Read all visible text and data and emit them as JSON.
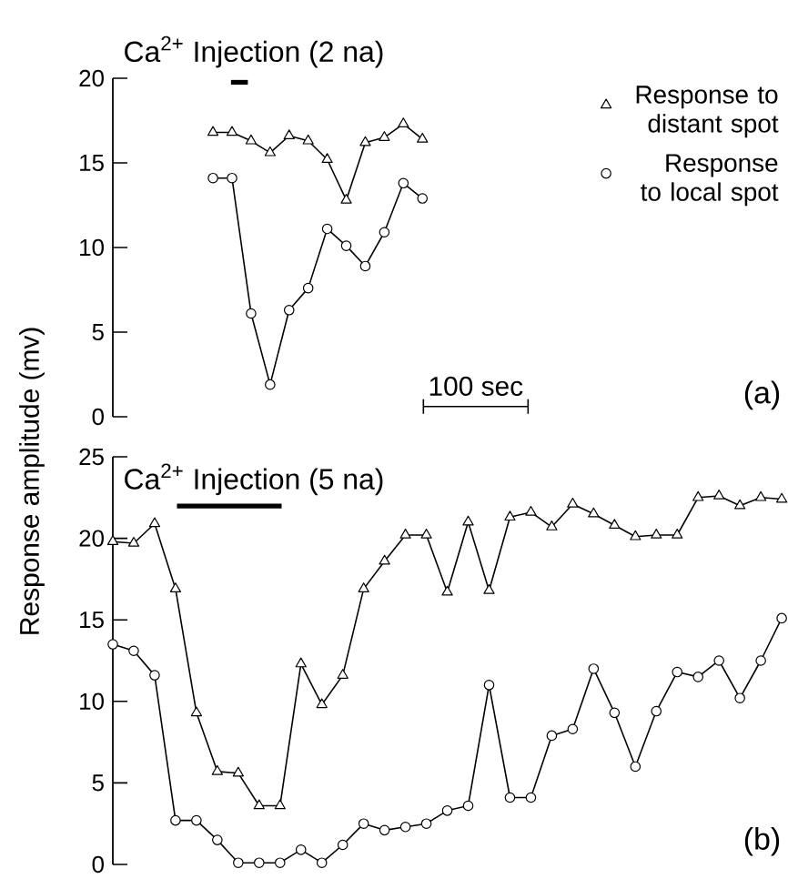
{
  "chart_data": [
    {
      "type": "line",
      "categories": [
        null,
        null,
        null,
        null,
        null,
        null,
        null,
        null,
        null,
        null,
        null,
        null
      ],
      "ylim": [
        0,
        20
      ],
      "yticks": [
        0,
        5,
        10,
        15,
        20
      ],
      "tick_labels": "y",
      "legend": "top right",
      "line_style": "solid",
      "series": [
        {
          "name": "Response to distant spot",
          "color": "#000000",
          "marker": "triangle",
          "values": [
            16.8,
            16.8,
            16.3,
            15.6,
            16.6,
            16.3,
            15.2,
            12.8,
            16.2,
            16.5,
            17.3,
            16.4
          ]
        },
        {
          "name": "Response to local spot",
          "color": "#000000",
          "marker": "circle",
          "values": [
            14.1,
            14.1,
            6.1,
            1.9,
            6.3,
            7.6,
            11.1,
            10.1,
            8.9,
            10.9,
            13.8,
            12.9
          ]
        }
      ],
      "annotations": [
        "Ca$^{2+}$ Injection (2 na)",
        "100 sec",
        "(a)"
      ]
    },
    {
      "type": "line",
      "categories": [
        null,
        null,
        null,
        null,
        null,
        null,
        null,
        null,
        null,
        null,
        null,
        null,
        null,
        null,
        null,
        null,
        null,
        null,
        null,
        null,
        null,
        null,
        null,
        null,
        null,
        null,
        null,
        null,
        null,
        null,
        null,
        null,
        null
      ],
      "ylim": [
        0,
        25
      ],
      "yticks": [
        0,
        5,
        10,
        15,
        20,
        25
      ],
      "tick_labels": "y",
      "ylabel": "Response amplitude (mv)",
      "line_style": "solid",
      "series": [
        {
          "color": "#000000",
          "marker": "triangle",
          "values": [
            19.8,
            19.7,
            20.9,
            16.9,
            9.3,
            5.7,
            5.6,
            3.6,
            3.6,
            12.3,
            9.8,
            11.6,
            16.9,
            18.6,
            20.2,
            20.2,
            16.7,
            21.0,
            16.8,
            21.3,
            21.6,
            20.7,
            22.1,
            21.5,
            20.8,
            20.1,
            20.2,
            20.2,
            22.5,
            22.6,
            22.0,
            22.5,
            22.4
          ]
        },
        {
          "color": "#000000",
          "marker": "circle",
          "values": [
            13.5,
            13.1,
            11.6,
            2.7,
            2.7,
            1.5,
            0.1,
            0.1,
            0.1,
            0.9,
            0.1,
            1.2,
            2.5,
            2.1,
            2.3,
            2.5,
            3.3,
            3.6,
            11.0,
            4.1,
            4.1,
            7.9,
            8.3,
            12.0,
            9.3,
            6.0,
            9.4,
            11.8,
            11.5,
            12.5,
            10.2,
            12.5,
            15.1
          ]
        }
      ],
      "annotations": [
        "Ca$^{2+}$ Injection (5 na)",
        "(b)"
      ]
    }
  ]
}
